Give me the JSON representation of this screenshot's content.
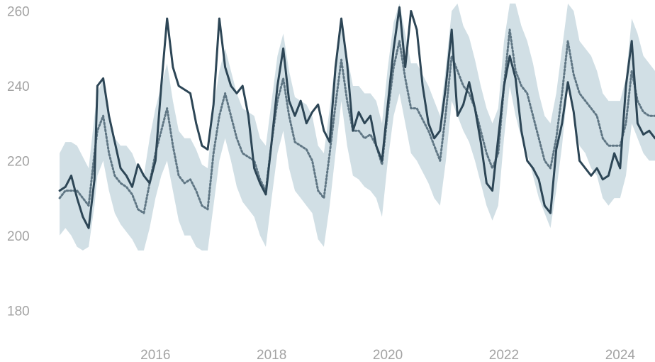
{
  "chart_data": {
    "type": "line",
    "title": "",
    "xlabel": "",
    "ylabel": "",
    "grid": false,
    "legend": "none",
    "xlim": [
      2014.3,
      2024.6
    ],
    "ylim": [
      170,
      262
    ],
    "x_ticks": [
      2016,
      2018,
      2020,
      2022,
      2024
    ],
    "x_tick_labels": [
      "2016",
      "2018",
      "2020",
      "2022",
      "2024"
    ],
    "y_ticks": [
      180,
      200,
      220,
      240,
      260
    ],
    "y_tick_labels": [
      "180",
      "200",
      "220",
      "240",
      "260"
    ],
    "colors": {
      "actual": "#2d4656",
      "expected": "#5f7684",
      "band": "#d1dfe5"
    },
    "series": [
      {
        "role": "actual",
        "style": "solid",
        "x": [
          2014.35,
          2014.45,
          2014.55,
          2014.65,
          2014.75,
          2014.85,
          2014.95,
          2015.0,
          2015.1,
          2015.2,
          2015.3,
          2015.4,
          2015.5,
          2015.6,
          2015.7,
          2015.8,
          2015.9,
          2016.0,
          2016.1,
          2016.2,
          2016.3,
          2016.4,
          2016.5,
          2016.6,
          2016.7,
          2016.8,
          2016.9,
          2017.0,
          2017.1,
          2017.2,
          2017.3,
          2017.4,
          2017.5,
          2017.6,
          2017.7,
          2017.8,
          2017.9,
          2018.0,
          2018.1,
          2018.2,
          2018.3,
          2018.4,
          2018.5,
          2018.6,
          2018.7,
          2018.8,
          2018.9,
          2019.0,
          2019.1,
          2019.2,
          2019.3,
          2019.4,
          2019.5,
          2019.6,
          2019.7,
          2019.8,
          2019.9,
          2020.0,
          2020.1,
          2020.2,
          2020.3,
          2020.4,
          2020.5,
          2020.6,
          2020.7,
          2020.8,
          2020.9,
          2021.0,
          2021.1,
          2021.2,
          2021.3,
          2021.4,
          2021.5,
          2021.6,
          2021.7,
          2021.8,
          2021.9,
          2022.0,
          2022.1,
          2022.2,
          2022.3,
          2022.4,
          2022.5,
          2022.6,
          2022.7,
          2022.8,
          2022.9,
          2023.0,
          2023.1,
          2023.2,
          2023.3,
          2023.4,
          2023.5,
          2023.6,
          2023.7,
          2023.8,
          2023.9,
          2024.0,
          2024.1,
          2024.2,
          2024.3,
          2024.4,
          2024.5,
          2024.6
        ],
        "values": [
          212,
          213,
          216,
          210,
          205,
          202,
          215,
          240,
          242,
          232,
          225,
          218,
          216,
          213,
          219,
          216,
          214,
          220,
          240,
          258,
          245,
          240,
          239,
          238,
          230,
          224,
          223,
          235,
          258,
          245,
          240,
          238,
          240,
          232,
          218,
          214,
          211,
          225,
          240,
          250,
          236,
          232,
          236,
          230,
          233,
          235,
          228,
          225,
          245,
          258,
          246,
          228,
          233,
          230,
          232,
          224,
          220,
          235,
          250,
          261,
          245,
          260,
          255,
          240,
          230,
          226,
          228,
          240,
          255,
          232,
          235,
          241,
          234,
          225,
          214,
          212,
          226,
          240,
          248,
          242,
          228,
          220,
          218,
          215,
          208,
          206,
          223,
          230,
          241,
          233,
          220,
          218,
          216,
          218,
          215,
          216,
          222,
          218,
          240,
          252,
          230,
          227,
          228,
          226
        ]
      },
      {
        "role": "expected",
        "style": "dotted",
        "x": [
          2014.35,
          2014.45,
          2014.55,
          2014.65,
          2014.75,
          2014.85,
          2014.95,
          2015.0,
          2015.1,
          2015.2,
          2015.3,
          2015.4,
          2015.5,
          2015.6,
          2015.7,
          2015.8,
          2015.9,
          2016.0,
          2016.1,
          2016.2,
          2016.3,
          2016.4,
          2016.5,
          2016.6,
          2016.7,
          2016.8,
          2016.9,
          2017.0,
          2017.1,
          2017.2,
          2017.3,
          2017.4,
          2017.5,
          2017.6,
          2017.7,
          2017.8,
          2017.9,
          2018.0,
          2018.1,
          2018.2,
          2018.3,
          2018.4,
          2018.5,
          2018.6,
          2018.7,
          2018.8,
          2018.9,
          2019.0,
          2019.1,
          2019.2,
          2019.3,
          2019.4,
          2019.5,
          2019.6,
          2019.7,
          2019.8,
          2019.9,
          2020.0,
          2020.1,
          2020.2,
          2020.3,
          2020.4,
          2020.5,
          2020.6,
          2020.7,
          2020.8,
          2020.9,
          2021.0,
          2021.1,
          2021.2,
          2021.3,
          2021.4,
          2021.5,
          2021.6,
          2021.7,
          2021.8,
          2021.9,
          2022.0,
          2022.1,
          2022.2,
          2022.3,
          2022.4,
          2022.5,
          2022.6,
          2022.7,
          2022.8,
          2022.9,
          2023.0,
          2023.1,
          2023.2,
          2023.3,
          2023.4,
          2023.5,
          2023.6,
          2023.7,
          2023.8,
          2023.9,
          2024.0,
          2024.1,
          2024.2,
          2024.3,
          2024.4,
          2024.5,
          2024.6
        ],
        "values": [
          210,
          212,
          212,
          212,
          210,
          208,
          222,
          228,
          232,
          222,
          216,
          214,
          213,
          211,
          207,
          206,
          214,
          222,
          228,
          234,
          224,
          216,
          214,
          215,
          212,
          208,
          207,
          222,
          232,
          238,
          232,
          226,
          222,
          221,
          220,
          215,
          212,
          225,
          236,
          242,
          232,
          225,
          224,
          223,
          220,
          212,
          210,
          222,
          235,
          247,
          236,
          228,
          228,
          226,
          227,
          224,
          219,
          233,
          245,
          252,
          242,
          234,
          234,
          231,
          228,
          224,
          220,
          233,
          248,
          244,
          240,
          238,
          234,
          228,
          222,
          218,
          222,
          240,
          255,
          244,
          240,
          238,
          232,
          226,
          220,
          218,
          226,
          238,
          252,
          243,
          238,
          236,
          234,
          232,
          226,
          224,
          224,
          224,
          230,
          244,
          236,
          233,
          232,
          232
        ]
      },
      {
        "role": "band_upper",
        "style": "fill",
        "x": [
          2014.35,
          2014.45,
          2014.55,
          2014.65,
          2014.75,
          2014.85,
          2014.95,
          2015.0,
          2015.1,
          2015.2,
          2015.3,
          2015.4,
          2015.5,
          2015.6,
          2015.7,
          2015.8,
          2015.9,
          2016.0,
          2016.1,
          2016.2,
          2016.3,
          2016.4,
          2016.5,
          2016.6,
          2016.7,
          2016.8,
          2016.9,
          2017.0,
          2017.1,
          2017.2,
          2017.3,
          2017.4,
          2017.5,
          2017.6,
          2017.7,
          2017.8,
          2017.9,
          2018.0,
          2018.1,
          2018.2,
          2018.3,
          2018.4,
          2018.5,
          2018.6,
          2018.7,
          2018.8,
          2018.9,
          2019.0,
          2019.1,
          2019.2,
          2019.3,
          2019.4,
          2019.5,
          2019.6,
          2019.7,
          2019.8,
          2019.9,
          2020.0,
          2020.1,
          2020.2,
          2020.3,
          2020.4,
          2020.5,
          2020.6,
          2020.7,
          2020.8,
          2020.9,
          2021.0,
          2021.1,
          2021.2,
          2021.3,
          2021.4,
          2021.5,
          2021.6,
          2021.7,
          2021.8,
          2021.9,
          2022.0,
          2022.1,
          2022.2,
          2022.3,
          2022.4,
          2022.5,
          2022.6,
          2022.7,
          2022.8,
          2022.9,
          2023.0,
          2023.1,
          2023.2,
          2023.3,
          2023.4,
          2023.5,
          2023.6,
          2023.7,
          2023.8,
          2023.9,
          2024.0,
          2024.1,
          2024.2,
          2024.3,
          2024.4,
          2024.5,
          2024.6
        ],
        "values": [
          222,
          225,
          225,
          224,
          221,
          218,
          232,
          238,
          242,
          232,
          226,
          224,
          224,
          222,
          218,
          216,
          226,
          234,
          240,
          246,
          236,
          228,
          226,
          226,
          223,
          219,
          218,
          234,
          244,
          250,
          244,
          238,
          234,
          233,
          232,
          226,
          224,
          236,
          248,
          254,
          244,
          237,
          236,
          235,
          232,
          224,
          222,
          234,
          247,
          258,
          248,
          240,
          240,
          238,
          238,
          236,
          230,
          245,
          257,
          262,
          254,
          246,
          246,
          243,
          240,
          236,
          232,
          245,
          260,
          262,
          256,
          253,
          247,
          240,
          234,
          230,
          234,
          252,
          262,
          262,
          256,
          252,
          246,
          238,
          232,
          230,
          238,
          250,
          262,
          260,
          252,
          250,
          248,
          244,
          238,
          236,
          236,
          236,
          242,
          258,
          254,
          248,
          246,
          244
        ]
      },
      {
        "role": "band_lower",
        "style": "fill",
        "x": [
          2014.35,
          2014.45,
          2014.55,
          2014.65,
          2014.75,
          2014.85,
          2014.95,
          2015.0,
          2015.1,
          2015.2,
          2015.3,
          2015.4,
          2015.5,
          2015.6,
          2015.7,
          2015.8,
          2015.9,
          2016.0,
          2016.1,
          2016.2,
          2016.3,
          2016.4,
          2016.5,
          2016.6,
          2016.7,
          2016.8,
          2016.9,
          2017.0,
          2017.1,
          2017.2,
          2017.3,
          2017.4,
          2017.5,
          2017.6,
          2017.7,
          2017.8,
          2017.9,
          2018.0,
          2018.1,
          2018.2,
          2018.3,
          2018.4,
          2018.5,
          2018.6,
          2018.7,
          2018.8,
          2018.9,
          2019.0,
          2019.1,
          2019.2,
          2019.3,
          2019.4,
          2019.5,
          2019.6,
          2019.7,
          2019.8,
          2019.9,
          2020.0,
          2020.1,
          2020.2,
          2020.3,
          2020.4,
          2020.5,
          2020.6,
          2020.7,
          2020.8,
          2020.9,
          2021.0,
          2021.1,
          2021.2,
          2021.3,
          2021.4,
          2021.5,
          2021.6,
          2021.7,
          2021.8,
          2021.9,
          2022.0,
          2022.1,
          2022.2,
          2022.3,
          2022.4,
          2022.5,
          2022.6,
          2022.7,
          2022.8,
          2022.9,
          2023.0,
          2023.1,
          2023.2,
          2023.3,
          2023.4,
          2023.5,
          2023.6,
          2023.7,
          2023.8,
          2023.9,
          2024.0,
          2024.1,
          2024.2,
          2024.3,
          2024.4,
          2024.5,
          2024.6
        ],
        "values": [
          200,
          202,
          200,
          197,
          196,
          197,
          208,
          216,
          220,
          212,
          206,
          203,
          201,
          199,
          196,
          196,
          202,
          210,
          216,
          220,
          212,
          204,
          200,
          200,
          197,
          196,
          196,
          208,
          220,
          226,
          220,
          213,
          209,
          207,
          205,
          200,
          197,
          210,
          222,
          228,
          218,
          212,
          210,
          208,
          206,
          199,
          197,
          208,
          222,
          236,
          224,
          216,
          215,
          213,
          212,
          210,
          205,
          220,
          232,
          238,
          230,
          222,
          220,
          217,
          214,
          210,
          208,
          220,
          236,
          232,
          228,
          225,
          220,
          214,
          208,
          204,
          208,
          226,
          240,
          232,
          226,
          222,
          216,
          210,
          206,
          202,
          212,
          224,
          240,
          232,
          224,
          222,
          218,
          216,
          210,
          208,
          210,
          210,
          216,
          230,
          226,
          222,
          220,
          220
        ]
      }
    ]
  }
}
